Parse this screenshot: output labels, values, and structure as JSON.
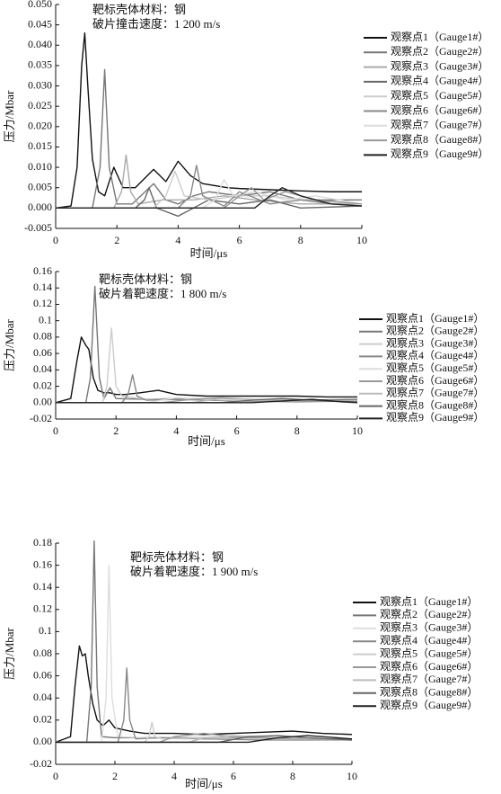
{
  "chart_data": [
    {
      "type": "line",
      "annotations": [
        "靶标壳体材料：钢",
        "破片撞击速度：1 200 m/s"
      ],
      "xlabel": "时间/μs",
      "ylabel": "压力/Mbar",
      "xlim": [
        0,
        10
      ],
      "xticks": [
        0,
        2,
        4,
        6,
        8,
        10
      ],
      "ylim": [
        -0.005,
        0.05
      ],
      "yticks": [
        -0.005,
        {
          "value": 0,
          "label": "0.000"
        },
        0.005,
        {
          "value": 0.01,
          "label": "0.010"
        },
        0.015,
        {
          "value": 0.02,
          "label": "0.020"
        },
        0.025,
        {
          "value": 0.03,
          "label": "0.030"
        },
        0.035,
        {
          "value": 0.04,
          "label": "0.040"
        },
        0.045,
        {
          "value": 0.05,
          "label": "0.050"
        }
      ],
      "legend": "right",
      "series": [
        {
          "name": "观察点1（Gauge1#）",
          "color": "#111111",
          "x": [
            0,
            0.5,
            0.7,
            0.85,
            0.95,
            1.05,
            1.2,
            1.4,
            1.6,
            1.9,
            2.2,
            2.6,
            3.2,
            3.6,
            4,
            4.4,
            4.8,
            5.2,
            5.6,
            6,
            7,
            8,
            9,
            10
          ],
          "values": [
            0,
            0.0005,
            0.01,
            0.035,
            0.043,
            0.03,
            0.012,
            0.004,
            0.003,
            0.01,
            0.005,
            0.005,
            0.0095,
            0.0065,
            0.0115,
            0.008,
            0.006,
            0.0055,
            0.005,
            0.0048,
            0.0045,
            0.0042,
            0.004,
            0.004
          ]
        },
        {
          "name": "观察点2（Gauge2#）",
          "color": "#777777",
          "x": [
            0,
            1.2,
            1.45,
            1.6,
            1.75,
            2.0,
            2.5,
            3.2,
            3.6,
            4.0,
            4.5,
            5,
            6,
            7,
            8,
            9,
            10
          ],
          "values": [
            0,
            0,
            0.01,
            0.034,
            0.01,
            0.001,
            0.001,
            0.006,
            0.002,
            0.001,
            0.003,
            0.004,
            0.003,
            0.004,
            0.002,
            0.002,
            0.002
          ]
        },
        {
          "name": "观察点3（Gauge3#）",
          "color": "#aaaaaa",
          "x": [
            0,
            1.9,
            2.15,
            2.3,
            2.45,
            2.7,
            3.5,
            4.5,
            5.5,
            6.5,
            8,
            10
          ],
          "values": [
            0,
            0,
            0.004,
            0.013,
            0.004,
            0.001,
            0.002,
            0.002,
            0.003,
            0.002,
            0.001,
            0.001
          ]
        },
        {
          "name": "观察点4（Gauge4#）",
          "color": "#666666",
          "x": [
            0,
            2.6,
            2.9,
            3.05,
            3.3,
            4,
            5,
            6,
            7,
            8,
            10
          ],
          "values": [
            0,
            0,
            0.002,
            0.005,
            0,
            -0.002,
            0.002,
            0.001,
            0.002,
            0,
            0.0005
          ]
        },
        {
          "name": "观察点5（Gauge5#）",
          "color": "#cccccc",
          "x": [
            0,
            3.2,
            3.6,
            3.9,
            4.2,
            5,
            6,
            7,
            8,
            10
          ],
          "values": [
            0,
            0,
            0.003,
            0.009,
            0.003,
            0.002,
            0.003,
            0.003,
            0.002,
            0.001
          ]
        },
        {
          "name": "观察点6（Gauge6#）",
          "color": "#888888",
          "x": [
            0,
            4,
            4.4,
            4.6,
            4.8,
            5.5,
            6,
            7,
            8,
            9,
            10
          ],
          "values": [
            0,
            0,
            0.003,
            0.0105,
            0.003,
            0.0005,
            0.004,
            0.001,
            0.002,
            0.001,
            0.0005
          ]
        },
        {
          "name": "观察点7（Gauge7#）",
          "color": "#dddddd",
          "x": [
            0,
            4.8,
            5.2,
            5.5,
            5.8,
            6.5,
            7.5,
            8.5,
            10
          ],
          "values": [
            0,
            0,
            0.002,
            0.007,
            0.003,
            0.004,
            0.002,
            0.003,
            0.001
          ]
        },
        {
          "name": "观察点8（Gauge8#）",
          "color": "#999999",
          "x": [
            0,
            5.5,
            6,
            6.4,
            6.8,
            7.5,
            8.5,
            10
          ],
          "values": [
            0,
            0,
            0.003,
            0.005,
            0.002,
            0.004,
            0.002,
            0.001
          ]
        },
        {
          "name": "观察点9（Gauge9#）",
          "color": "#222222",
          "x": [
            0,
            6.5,
            7,
            7.4,
            8,
            9,
            10
          ],
          "values": [
            0,
            0,
            0.003,
            0.005,
            0.003,
            0.001,
            0.0005
          ]
        }
      ]
    },
    {
      "type": "line",
      "annotations": [
        "靶标壳体材料：钢",
        "破片着靶速度：1 800 m/s"
      ],
      "xlabel": "时间/μs",
      "ylabel": "压力/Mbar",
      "xlim": [
        0,
        10
      ],
      "xticks": [
        0,
        2,
        4,
        6,
        8,
        10
      ],
      "ylim": [
        -0.02,
        0.16
      ],
      "yticks": [
        -0.02,
        {
          "value": 0,
          "label": "0.00"
        },
        0.02,
        0.04,
        0.06,
        0.08,
        0.1,
        0.12,
        0.14,
        0.16
      ],
      "legend": "right",
      "series": [
        {
          "name": "观察点1（Gauge1#）",
          "color": "#111111",
          "x": [
            0,
            0.5,
            0.7,
            0.85,
            1.0,
            1.1,
            1.25,
            1.4,
            1.6,
            1.8,
            2.0,
            2.3,
            2.8,
            3.4,
            4,
            5,
            6,
            7,
            8,
            9,
            10
          ],
          "values": [
            0,
            0.005,
            0.05,
            0.08,
            0.07,
            0.065,
            0.03,
            0.015,
            0.012,
            0.012,
            0.01,
            0.01,
            0.012,
            0.015,
            0.01,
            0.008,
            0.008,
            0.008,
            0.008,
            0.007,
            0.007
          ]
        },
        {
          "name": "观察点2（Gauge2#）",
          "color": "#777777",
          "x": [
            0,
            1.0,
            1.15,
            1.3,
            1.45,
            1.6,
            1.8,
            2,
            3,
            4,
            6,
            8,
            10
          ],
          "values": [
            0,
            0,
            0.03,
            0.142,
            0.03,
            0.005,
            0.018,
            0.005,
            0.004,
            0.005,
            0.004,
            0.003,
            0.004
          ]
        },
        {
          "name": "观察点3（Gauge3#）",
          "color": "#cccccc",
          "x": [
            0,
            1.55,
            1.7,
            1.85,
            2.0,
            2.2,
            3,
            4,
            6,
            8,
            10
          ],
          "values": [
            0,
            0,
            0.02,
            0.091,
            0.02,
            0.008,
            0.004,
            0.004,
            0.003,
            0.002,
            0.002
          ]
        },
        {
          "name": "观察点4（Gauge4#）",
          "color": "#888888",
          "x": [
            0,
            2.2,
            2.4,
            2.55,
            2.7,
            3,
            4,
            6,
            8,
            10
          ],
          "values": [
            0,
            0,
            0.01,
            0.034,
            0.008,
            0.003,
            0.004,
            0.002,
            0.001,
            0.002
          ]
        },
        {
          "name": "观察点5（Gauge5#）",
          "color": "#dddddd",
          "x": [
            0,
            3,
            3.5,
            4,
            5,
            6,
            8,
            10
          ],
          "values": [
            0,
            0,
            0.003,
            0.006,
            0.004,
            0.003,
            0.002,
            0.002
          ]
        },
        {
          "name": "观察点6（Gauge6#）",
          "color": "#999999",
          "x": [
            0,
            3.5,
            4.5,
            5.5,
            7,
            8.5,
            10
          ],
          "values": [
            0,
            0,
            0.004,
            0.006,
            0.003,
            0.002,
            0.001
          ]
        },
        {
          "name": "观察点7（Gauge7#）",
          "color": "#bbbbbb",
          "x": [
            0,
            4.5,
            5.5,
            6.5,
            8,
            10
          ],
          "values": [
            0,
            0,
            0.005,
            0.004,
            0.003,
            0.002
          ]
        },
        {
          "name": "观察点8（Gauge8#）",
          "color": "#666666",
          "x": [
            0,
            5.5,
            6.5,
            7.5,
            9,
            10
          ],
          "values": [
            0,
            0,
            0.003,
            0.005,
            0.002,
            0.001
          ]
        },
        {
          "name": "观察点9（Gauge9#）",
          "color": "#222222",
          "x": [
            0,
            6.5,
            7.5,
            8.5,
            9.5,
            10
          ],
          "values": [
            0,
            0,
            0.002,
            0.004,
            0.001,
            0
          ]
        }
      ]
    },
    {
      "type": "line",
      "annotations": [
        "靶标壳体材料：钢",
        "破片着靶速度：1 900 m/s"
      ],
      "xlabel": "时间/μs",
      "ylabel": "压力/Mbar",
      "xlim": [
        0,
        10
      ],
      "xticks": [
        0,
        2,
        4,
        6,
        8,
        10
      ],
      "ylim": [
        -0.02,
        0.18
      ],
      "yticks": [
        -0.02,
        {
          "value": 0,
          "label": "0.00"
        },
        0.02,
        0.04,
        0.06,
        0.08,
        0.1,
        0.12,
        0.14,
        0.16,
        0.18
      ],
      "legend": "right",
      "series": [
        {
          "name": "观察点1（Gauge1#）",
          "color": "#111111",
          "x": [
            0,
            0.5,
            0.65,
            0.8,
            0.9,
            1.0,
            1.1,
            1.25,
            1.4,
            1.6,
            1.8,
            2.0,
            2.5,
            3,
            4,
            5,
            6,
            7,
            8,
            9,
            10
          ],
          "values": [
            0,
            0.005,
            0.05,
            0.087,
            0.078,
            0.08,
            0.06,
            0.035,
            0.02,
            0.015,
            0.02,
            0.013,
            0.01,
            0.008,
            0.008,
            0.007,
            0.008,
            0.009,
            0.01,
            0.008,
            0.007
          ]
        },
        {
          "name": "观察点2（Gauge2#）",
          "color": "#777777",
          "x": [
            0,
            1.05,
            1.2,
            1.3,
            1.4,
            1.55,
            2,
            3,
            4,
            6,
            8,
            10
          ],
          "values": [
            0,
            0,
            0.05,
            0.182,
            0.05,
            0.005,
            0.004,
            0.004,
            0.004,
            0.004,
            0.003,
            0.003
          ]
        },
        {
          "name": "观察点3（Gauge3#）",
          "color": "#dddddd",
          "x": [
            0,
            1.55,
            1.7,
            1.8,
            1.9,
            2.1,
            3,
            4,
            6,
            8,
            10
          ],
          "values": [
            0,
            0,
            0.04,
            0.16,
            0.04,
            0.005,
            0.004,
            0.003,
            0.003,
            0.002,
            0.002
          ]
        },
        {
          "name": "观察点4（Gauge4#）",
          "color": "#888888",
          "x": [
            0,
            2.1,
            2.3,
            2.4,
            2.5,
            2.7,
            3.5,
            5,
            7,
            10
          ],
          "values": [
            0,
            0,
            0.02,
            0.067,
            0.02,
            0.003,
            0.004,
            0.003,
            0.002,
            0.002
          ]
        },
        {
          "name": "观察点5（Gauge5#）",
          "color": "#cccccc",
          "x": [
            0,
            3,
            3.15,
            3.25,
            3.35,
            3.6,
            5,
            7,
            10
          ],
          "values": [
            0,
            0,
            0.005,
            0.018,
            0.005,
            0.003,
            0.004,
            0.003,
            0.002
          ]
        },
        {
          "name": "观察点6（Gauge6#）",
          "color": "#999999",
          "x": [
            0,
            3.5,
            4,
            5,
            6,
            8,
            10
          ],
          "values": [
            0,
            0,
            0.005,
            0.008,
            0.005,
            0.003,
            0.002
          ]
        },
        {
          "name": "观察点7（Gauge7#）",
          "color": "#bbbbbb",
          "x": [
            0,
            4.5,
            5,
            6,
            7.5,
            9,
            10
          ],
          "values": [
            0,
            0,
            0.004,
            0.006,
            0.004,
            0.003,
            0.002
          ]
        },
        {
          "name": "观察点8（Gauge8#）",
          "color": "#666666",
          "x": [
            0,
            5.5,
            6.5,
            7.5,
            8.5,
            10
          ],
          "values": [
            0,
            0,
            0.005,
            0.006,
            0.004,
            0.002
          ]
        },
        {
          "name": "观察点9（Gauge9#）",
          "color": "#222222",
          "x": [
            0,
            6.5,
            7.5,
            8.5,
            9.5,
            10
          ],
          "values": [
            0,
            0,
            0.004,
            0.006,
            0.004,
            0.003
          ]
        }
      ]
    }
  ]
}
